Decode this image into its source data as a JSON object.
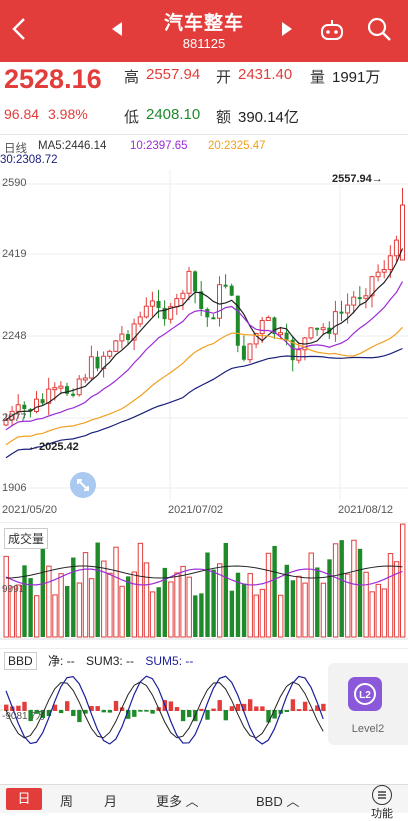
{
  "header": {
    "title": "汽车整车",
    "code": "881125"
  },
  "quote": {
    "price": "2528.16",
    "change": "96.84",
    "change_pct": "3.98%",
    "high_label": "高",
    "high": "2557.94",
    "open_label": "开",
    "open": "2431.40",
    "volume_label": "量",
    "volume": "1991万",
    "low_label": "低",
    "low": "2408.10",
    "amount_label": "额",
    "amount": "390.14亿"
  },
  "ma_legend": {
    "period": "日线",
    "ma5": "MA5:2446.14",
    "ma10": "10:2397.65",
    "ma20": "20:2325.47",
    "ma30": "30:2308.72"
  },
  "price_axis": {
    "y1": "2590",
    "y2": "2419",
    "y3": "2248",
    "y4": "2077",
    "y5": "1906"
  },
  "annotations": {
    "max_label": "2557.94→",
    "min_label": "←2025.42"
  },
  "dates": {
    "d1": "2021/05/20",
    "d2": "2021/07/02",
    "d3": "2021/08/12"
  },
  "volume_panel": {
    "label": "成交量",
    "axis": "9991"
  },
  "bbd_panel": {
    "tag": "BBD",
    "net": "净: --",
    "sum3": "SUM3: --",
    "sum5": "SUM5: --",
    "axis": "-9081.7万"
  },
  "level2": {
    "label": "Level2",
    "icon_text": "L2"
  },
  "bottom": {
    "day": "日",
    "week": "周",
    "month": "月",
    "more": "更多",
    "indicator": "BBD",
    "func": "功能"
  },
  "colors": {
    "up": "#e23d3b",
    "down": "#1e8a2a",
    "ma5": "#222222",
    "ma10": "#9b2bd6",
    "ma20": "#f0a020",
    "ma30": "#1a1f7a"
  }
}
